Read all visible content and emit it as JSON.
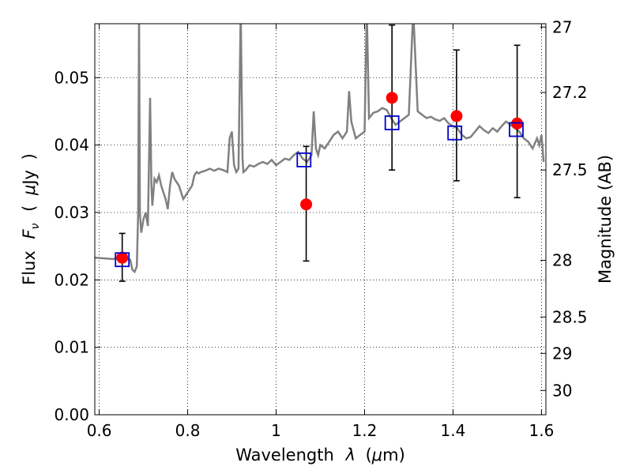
{
  "chart_data": {
    "type": "scatter",
    "title": "",
    "xlabel": {
      "prefix": "Wavelength",
      "symbol": "λ",
      "unit_open": "(",
      "unit_mu": "μ",
      "unit_rest": "m)"
    },
    "ylabel": {
      "prefix": "Flux",
      "symbol": "F",
      "subscript": "ν",
      "unit_open": "(",
      "unit_mu": "μ",
      "unit_rest": "Jy",
      "unit_close": ")"
    },
    "y2label": "Magnitude (AB)",
    "xlim": [
      0.59,
      1.61
    ],
    "ylim": [
      0.0,
      0.058
    ],
    "grid": true,
    "x_ticks": [
      {
        "value": 0.6,
        "label": "0.6"
      },
      {
        "value": 0.8,
        "label": "0.8"
      },
      {
        "value": 1.0,
        "label": "1"
      },
      {
        "value": 1.2,
        "label": "1.2"
      },
      {
        "value": 1.4,
        "label": "1.4"
      },
      {
        "value": 1.6,
        "label": "1.6"
      }
    ],
    "y_ticks": [
      {
        "value": 0.0,
        "label": "0.00"
      },
      {
        "value": 0.01,
        "label": "0.01"
      },
      {
        "value": 0.02,
        "label": "0.02"
      },
      {
        "value": 0.03,
        "label": "0.03"
      },
      {
        "value": 0.04,
        "label": "0.04"
      },
      {
        "value": 0.05,
        "label": "0.05"
      }
    ],
    "y2_ticks": [
      {
        "flux": 0.0575,
        "label": "27"
      },
      {
        "flux": 0.0478,
        "label": "27.2"
      },
      {
        "flux": 0.0363,
        "label": "27.5"
      },
      {
        "flux": 0.0229,
        "label": "28"
      },
      {
        "flux": 0.0145,
        "label": "28.5"
      },
      {
        "flux": 0.0091,
        "label": "29"
      },
      {
        "flux": 0.0036,
        "label": "30"
      }
    ],
    "series": [
      {
        "kind": "line",
        "color": "#808080",
        "x": [
          0.59,
          0.61,
          0.63,
          0.65,
          0.66,
          0.67,
          0.675,
          0.68,
          0.685,
          0.688,
          0.69,
          0.692,
          0.695,
          0.7,
          0.705,
          0.71,
          0.715,
          0.718,
          0.72,
          0.725,
          0.73,
          0.735,
          0.74,
          0.745,
          0.75,
          0.755,
          0.76,
          0.765,
          0.77,
          0.78,
          0.79,
          0.8,
          0.81,
          0.815,
          0.82,
          0.825,
          0.83,
          0.84,
          0.85,
          0.86,
          0.87,
          0.88,
          0.89,
          0.895,
          0.9,
          0.905,
          0.91,
          0.915,
          0.92,
          0.924,
          0.926,
          0.93,
          0.94,
          0.95,
          0.96,
          0.97,
          0.98,
          0.99,
          1.0,
          1.01,
          1.02,
          1.03,
          1.04,
          1.05,
          1.06,
          1.07,
          1.08,
          1.085,
          1.09,
          1.095,
          1.1,
          1.11,
          1.12,
          1.13,
          1.14,
          1.15,
          1.16,
          1.165,
          1.17,
          1.18,
          1.19,
          1.2,
          1.205,
          1.21,
          1.22,
          1.23,
          1.24,
          1.25,
          1.26,
          1.27,
          1.28,
          1.29,
          1.3,
          1.31,
          1.32,
          1.33,
          1.34,
          1.35,
          1.36,
          1.37,
          1.38,
          1.39,
          1.4,
          1.41,
          1.42,
          1.43,
          1.44,
          1.45,
          1.46,
          1.47,
          1.48,
          1.49,
          1.5,
          1.51,
          1.52,
          1.53,
          1.54,
          1.55,
          1.56,
          1.57,
          1.58,
          1.59,
          1.595,
          1.6,
          1.605
        ],
        "y": [
          0.0233,
          0.0232,
          0.0231,
          0.0233,
          0.0231,
          0.023,
          0.0215,
          0.0212,
          0.022,
          0.03,
          0.06,
          0.03,
          0.027,
          0.029,
          0.03,
          0.028,
          0.047,
          0.034,
          0.031,
          0.035,
          0.0345,
          0.0355,
          0.034,
          0.033,
          0.032,
          0.0305,
          0.034,
          0.036,
          0.035,
          0.034,
          0.032,
          0.033,
          0.034,
          0.0355,
          0.036,
          0.0358,
          0.036,
          0.0362,
          0.0365,
          0.0362,
          0.0365,
          0.0363,
          0.036,
          0.041,
          0.042,
          0.037,
          0.036,
          0.0365,
          0.06,
          0.038,
          0.036,
          0.0362,
          0.037,
          0.0368,
          0.0372,
          0.0375,
          0.0372,
          0.0378,
          0.037,
          0.0375,
          0.038,
          0.0378,
          0.0385,
          0.039,
          0.038,
          0.0375,
          0.0385,
          0.045,
          0.0395,
          0.0385,
          0.04,
          0.0395,
          0.0405,
          0.0415,
          0.042,
          0.041,
          0.042,
          0.048,
          0.0435,
          0.041,
          0.0415,
          0.042,
          0.06,
          0.044,
          0.0448,
          0.045,
          0.0455,
          0.0452,
          0.044,
          0.043,
          0.0435,
          0.044,
          0.0445,
          0.06,
          0.045,
          0.0445,
          0.044,
          0.0442,
          0.0438,
          0.0436,
          0.044,
          0.0432,
          0.0428,
          0.0425,
          0.0415,
          0.041,
          0.0412,
          0.042,
          0.0428,
          0.0422,
          0.0418,
          0.0425,
          0.042,
          0.0428,
          0.0435,
          0.043,
          0.0425,
          0.042,
          0.041,
          0.0405,
          0.0395,
          0.041,
          0.04,
          0.0415,
          0.0375
        ]
      },
      {
        "kind": "points",
        "marker": "circle",
        "color": "#ff0000",
        "x": [
          0.652,
          1.068,
          1.262,
          1.408,
          1.545
        ],
        "y": [
          0.0233,
          0.0312,
          0.047,
          0.0443,
          0.0432
        ]
      },
      {
        "kind": "errorbars",
        "color": "#000000",
        "x": [
          0.652,
          1.068,
          1.262,
          1.408,
          1.545
        ],
        "low": [
          0.0198,
          0.0228,
          0.0363,
          0.0347,
          0.0322
        ],
        "high": [
          0.0269,
          0.0398,
          0.0578,
          0.0541,
          0.0548
        ]
      },
      {
        "kind": "points",
        "marker": "open-square",
        "color": "#0000cc",
        "x": [
          0.652,
          1.063,
          1.262,
          1.404,
          1.543
        ],
        "y": [
          0.023,
          0.0378,
          0.0433,
          0.0418,
          0.0423
        ]
      }
    ]
  }
}
